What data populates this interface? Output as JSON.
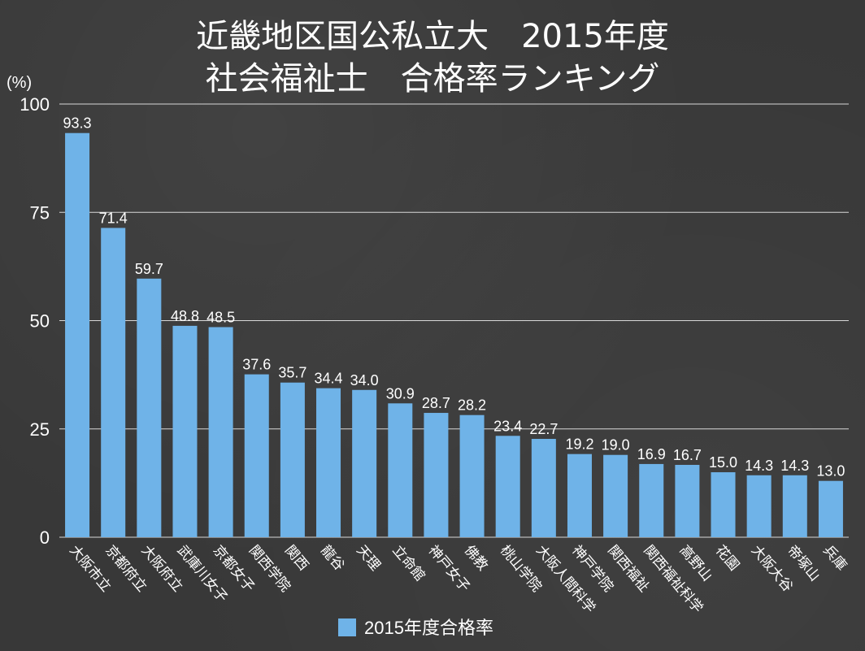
{
  "chart_data": {
    "type": "bar",
    "title_lines": [
      "近畿地区国公私立大　2015年度",
      "社会福祉士　合格率ランキング"
    ],
    "ylabel": "(%)",
    "ylim": [
      0,
      100
    ],
    "yticks": [
      0,
      25,
      50,
      75,
      100
    ],
    "grid": true,
    "legend_position": "bottom",
    "bar_color": "#6fb3e8",
    "categories": [
      "大阪市立",
      "京都府立",
      "大阪府立",
      "武庫川女子",
      "京都女子",
      "関西学院",
      "関西",
      "龍谷",
      "天理",
      "立命館",
      "神戸女子",
      "佛教",
      "桃山学院",
      "大阪人間科学",
      "神戸学院",
      "関西福祉",
      "関西福祉科学",
      "高野山",
      "花園",
      "大阪大谷",
      "帝塚山",
      "兵庫"
    ],
    "series": [
      {
        "name": "2015年度合格率",
        "values": [
          93.3,
          71.4,
          59.7,
          48.8,
          48.5,
          37.6,
          35.7,
          34.4,
          34.0,
          30.9,
          28.7,
          28.2,
          23.4,
          22.7,
          19.2,
          19.0,
          16.9,
          16.7,
          15.0,
          14.3,
          14.3,
          13.0
        ],
        "labels": [
          "93.3",
          "71.4",
          "59.7",
          "48.8",
          "48.5",
          "37.6",
          "35.7",
          "34.4",
          "34.0",
          "30.9",
          "28.7",
          "28.2",
          "23.4",
          "22.7",
          "19.2",
          "19.0",
          "16.9",
          "16.7",
          "15.0",
          "14.3",
          "14.3",
          "13.0"
        ]
      }
    ]
  }
}
